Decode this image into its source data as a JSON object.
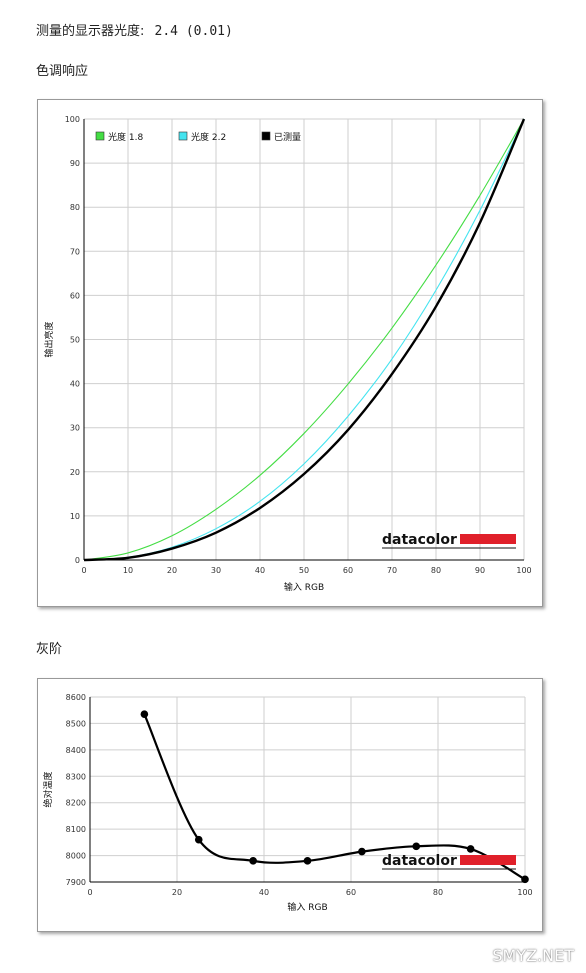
{
  "gamma_line": {
    "label": "测量的显示器光度:",
    "value": "2.4 (0.01)"
  },
  "tone_heading": "色调响应",
  "gray_heading": "灰阶",
  "logo_text": "datacolor",
  "watermark": "SMYZ.NET",
  "chart_data": [
    {
      "type": "line",
      "xlabel": "输入 RGB",
      "ylabel": "输出亮度",
      "xlim": [
        0,
        100
      ],
      "ylim": [
        0,
        100
      ],
      "xticks": [
        "0",
        "10",
        "20",
        "30",
        "40",
        "50",
        "60",
        "70",
        "80",
        "90",
        "100"
      ],
      "yticks": [
        "0",
        "10",
        "20",
        "30",
        "40",
        "50",
        "60",
        "70",
        "80",
        "90",
        "100"
      ],
      "grid": true,
      "legend_position": "top-left",
      "x": [
        0,
        10,
        20,
        30,
        40,
        50,
        60,
        70,
        80,
        90,
        100
      ],
      "series": [
        {
          "name": "光度 1.8",
          "color": "#44dd44",
          "values": [
            0,
            1.6,
            5.5,
            11.5,
            19.2,
            28.7,
            39.9,
            52.6,
            66.9,
            82.7,
            100
          ]
        },
        {
          "name": "光度 2.2",
          "color": "#44e4f0",
          "values": [
            0,
            0.6,
            2.9,
            7.1,
            13.3,
            21.8,
            32.6,
            45.6,
            61.2,
            79.3,
            100
          ]
        },
        {
          "name": "已测量",
          "color": "#000000",
          "values": [
            0,
            0.5,
            2.6,
            6.2,
            11.8,
            19.5,
            29.5,
            42.2,
            57.5,
            76.5,
            100
          ]
        }
      ]
    },
    {
      "type": "line",
      "xlabel": "输入 RGB",
      "ylabel": "绝对温度",
      "xlim": [
        0,
        100
      ],
      "ylim": [
        7900,
        8600
      ],
      "xticks": [
        "0",
        "20",
        "40",
        "60",
        "80",
        "100"
      ],
      "yticks": [
        "7900",
        "8000",
        "8100",
        "8200",
        "8300",
        "8400",
        "8500",
        "8600"
      ],
      "grid": true,
      "series": [
        {
          "name": "",
          "color": "#000000",
          "x": [
            12.5,
            25,
            37.5,
            50,
            62.5,
            75,
            87.5,
            100
          ],
          "values": [
            8535,
            8060,
            7980,
            7980,
            8015,
            8035,
            8025,
            7910
          ]
        }
      ]
    }
  ]
}
